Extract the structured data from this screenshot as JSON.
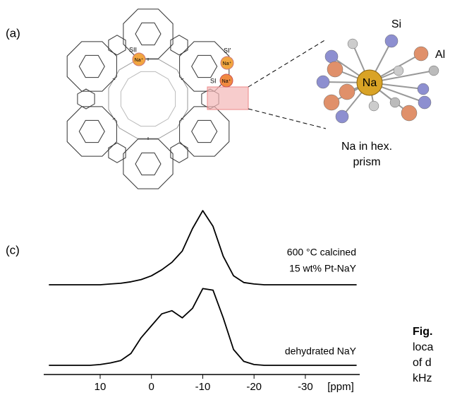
{
  "panel_a": {
    "label": "(a)",
    "sites": [
      {
        "site": "SII",
        "ion": "Na⁺"
      },
      {
        "site": "SI′",
        "ion": "Na⁺"
      },
      {
        "site": "SI",
        "ion": "Na⁺"
      }
    ],
    "inset": {
      "si": "Si",
      "al": "Al",
      "na": "Na",
      "caption": [
        "Na in hex.",
        "prism"
      ]
    }
  },
  "chart_data": {
    "type": "line",
    "panel_label": "(c)",
    "x": [
      20,
      18,
      16,
      14,
      12,
      10,
      8,
      6,
      4,
      2,
      0,
      -2,
      -4,
      -6,
      -8,
      -10,
      -12,
      -14,
      -16,
      -18,
      -20,
      -22,
      -24,
      -26,
      -28,
      -30,
      -32,
      -34,
      -36,
      -38,
      -40
    ],
    "xlim": [
      21,
      -40.6
    ],
    "xticks": [
      10,
      0,
      -10,
      -20,
      -30
    ],
    "xlabel": "[ppm]",
    "series": [
      {
        "label": [
          "600 °C calcined",
          "15 wt% Pt-NaY"
        ],
        "color": "#000000",
        "values": [
          0,
          0,
          0,
          0,
          0,
          0,
          0.01,
          0.02,
          0.04,
          0.07,
          0.12,
          0.2,
          0.3,
          0.45,
          0.75,
          0.99,
          0.78,
          0.38,
          0.12,
          0.03,
          0.01,
          0,
          0,
          0,
          0,
          0,
          0,
          0,
          0,
          0,
          0
        ]
      },
      {
        "label": [
          "dehydrated NaY"
        ],
        "color": "#000000",
        "values": [
          0,
          0,
          0,
          0,
          0,
          0.01,
          0.03,
          0.06,
          0.15,
          0.35,
          0.5,
          0.65,
          0.69,
          0.6,
          0.72,
          0.97,
          0.95,
          0.6,
          0.2,
          0.05,
          0.01,
          0,
          0,
          0,
          0,
          0,
          0,
          0,
          0,
          0,
          0
        ]
      }
    ]
  },
  "caption_fragment": [
    "Fig.",
    "loca",
    "of d",
    "kHz"
  ]
}
